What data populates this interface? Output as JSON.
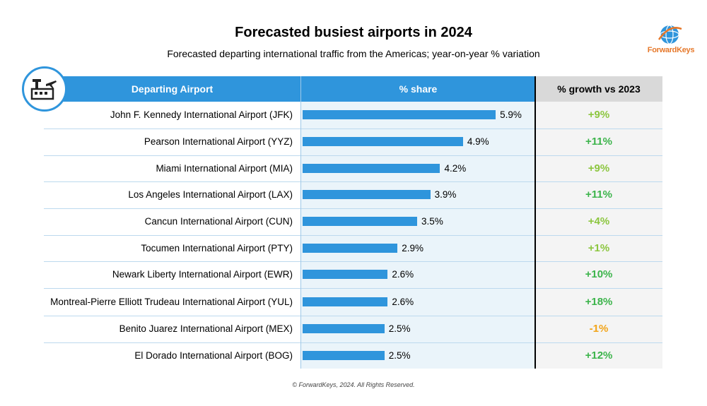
{
  "header": {
    "title": "Forecasted busiest airports in 2024",
    "subtitle": "Forecasted departing international traffic from the Americas; year-on-year % variation",
    "logo_text": "ForwardKeys"
  },
  "table": {
    "col_airport": "Departing Airport",
    "col_share": "% share",
    "col_growth": "% growth vs 2023"
  },
  "footer": "© ForwardKeys, 2024. All Rights Reserved.",
  "colors": {
    "accent": "#2f95dc",
    "positive": "#3cb44b",
    "neutral_positive": "#8cc63f",
    "negative": "#f2a51a",
    "logo": "#e6782a"
  },
  "chart_data": {
    "type": "bar",
    "title": "Forecasted busiest airports in 2024",
    "subtitle": "Forecasted departing international traffic from the Americas; year-on-year % variation",
    "categories": [
      "John F. Kennedy International Airport (JFK)",
      "Pearson International Airport (YYZ)",
      "Miami International Airport (MIA)",
      "Los Angeles International Airport (LAX)",
      "Cancun International Airport (CUN)",
      "Tocumen International Airport (PTY)",
      "Newark Liberty International Airport (EWR)",
      "Montreal-Pierre Elliott Trudeau International Airport (YUL)",
      "Benito Juarez International Airport (MEX)",
      "El Dorado International Airport (BOG)"
    ],
    "values": [
      5.9,
      4.9,
      4.2,
      3.9,
      3.5,
      2.9,
      2.6,
      2.6,
      2.5,
      2.5
    ],
    "value_labels": [
      "5.9%",
      "4.9%",
      "4.2%",
      "3.9%",
      "3.5%",
      "2.9%",
      "2.6%",
      "2.6%",
      "2.5%",
      "2.5%"
    ],
    "growth": [
      "+9%",
      "+11%",
      "+9%",
      "+11%",
      "+4%",
      "+1%",
      "+10%",
      "+18%",
      "-1%",
      "+12%"
    ],
    "growth_values": [
      9,
      11,
      9,
      11,
      4,
      1,
      10,
      18,
      -1,
      12
    ],
    "xlabel": "% share",
    "ylabel": "Departing Airport",
    "xlim": [
      0,
      6.5
    ]
  }
}
